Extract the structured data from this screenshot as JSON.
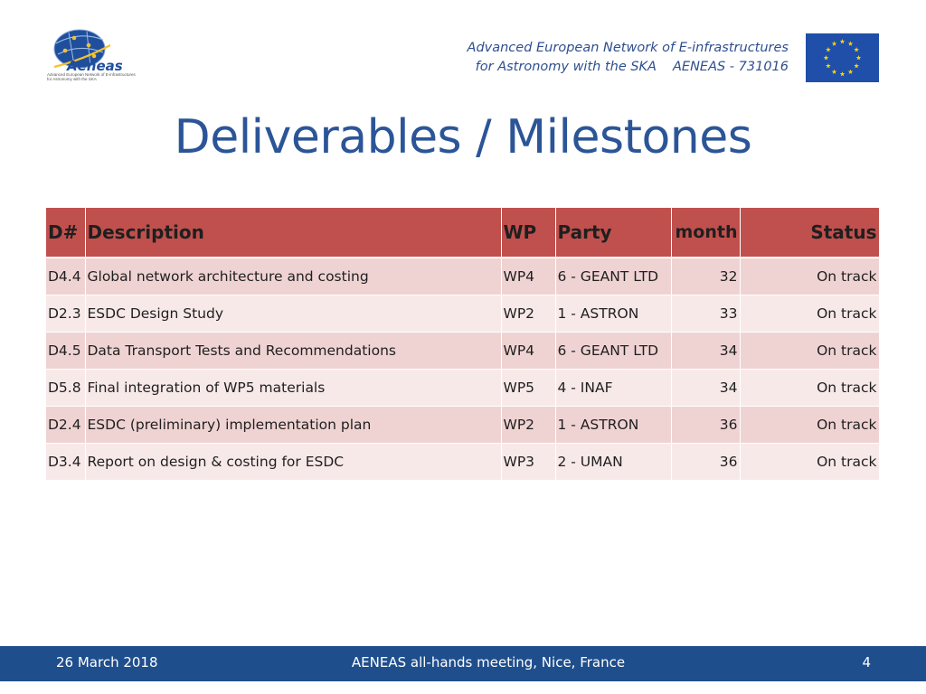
{
  "header": {
    "logo_name": "Aeneas",
    "logo_tagline_1": "Advanced European Network of E-infrastructures",
    "logo_tagline_2": "for Astronomy with the SKA",
    "line1": "Advanced European Network of E-infrastructures",
    "line2_left": "for Astronomy with the SKA",
    "line2_right": "AENEAS - 731016",
    "flag_icon": "eu-flag-icon"
  },
  "slide": {
    "title": "Deliverables / Milestones"
  },
  "table": {
    "headers": {
      "id": "D#",
      "description": "Description",
      "wp": "WP",
      "party": "Party",
      "month": "month",
      "status": "Status"
    },
    "rows": [
      {
        "id": "D4.4",
        "description": "Global network architecture and costing",
        "wp": "WP4",
        "party": "6 - GEANT LTD",
        "month": "32",
        "status": "On track"
      },
      {
        "id": "D2.3",
        "description": "ESDC Design Study",
        "wp": "WP2",
        "party": "1 - ASTRON",
        "month": "33",
        "status": "On track"
      },
      {
        "id": "D4.5",
        "description": "Data Transport Tests and Recommendations",
        "wp": "WP4",
        "party": "6 - GEANT LTD",
        "month": "34",
        "status": "On track"
      },
      {
        "id": "D5.8",
        "description": "Final integration of WP5 materials",
        "wp": "WP5",
        "party": "4 - INAF",
        "month": "34",
        "status": "On track"
      },
      {
        "id": "D2.4",
        "description": "ESDC (preliminary) implementation plan",
        "wp": "WP2",
        "party": "1 - ASTRON",
        "month": "36",
        "status": "On track"
      },
      {
        "id": "D3.4",
        "description": "Report on design & costing for ESDC",
        "wp": "WP3",
        "party": "2 - UMAN",
        "month": "36",
        "status": "On track"
      }
    ]
  },
  "footer": {
    "date": "26 March 2018",
    "event": "AENEAS all-hands meeting, Nice, France",
    "page": "4"
  },
  "colors": {
    "title": "#2b5597",
    "header_row": "#c0504d",
    "row_odd": "#efd3d2",
    "row_even": "#f8e9e9",
    "footer_bar": "#1f4e8c"
  }
}
